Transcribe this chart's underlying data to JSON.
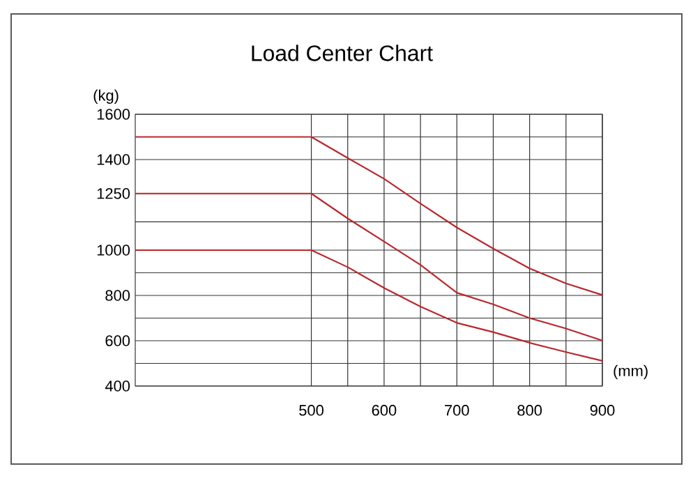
{
  "chart_data": {
    "type": "line",
    "title": "Load Center Chart",
    "xlabel": "(mm)",
    "ylabel": "(kg)",
    "xlim": [
      258,
      900
    ],
    "ylim": [
      400,
      1600
    ],
    "xticks": [
      500,
      {
        "value": 550,
        "label": null
      },
      600,
      {
        "value": 650,
        "label": null
      },
      700,
      {
        "value": 750,
        "label": null
      },
      800,
      {
        "value": 850,
        "label": null
      },
      900
    ],
    "yticks": [
      400,
      {
        "value": 500,
        "label": null
      },
      600,
      {
        "value": 700,
        "label": null
      },
      800,
      {
        "value": 900,
        "label": null
      },
      1000,
      {
        "value": 1125,
        "label": null
      },
      1250,
      1400,
      {
        "value": 1500,
        "label": null
      },
      1600
    ],
    "grid": true,
    "marker": "none",
    "line_style": "solid",
    "x": [
      258,
      500,
      550,
      600,
      650,
      700,
      750,
      800,
      850,
      900
    ],
    "series": [
      {
        "color": "#b8282d",
        "values": [
          1500,
          1500,
          1407,
          1315,
          1206,
          1100,
          1007,
          919,
          853,
          802
        ]
      },
      {
        "color": "#b8282d",
        "values": [
          1250,
          1250,
          1140,
          1038,
          935,
          812,
          761,
          700,
          654,
          601
        ]
      },
      {
        "color": "#b8282d",
        "values": [
          1000,
          1000,
          925,
          833,
          751,
          679,
          638,
          591,
          550,
          511
        ]
      }
    ]
  }
}
